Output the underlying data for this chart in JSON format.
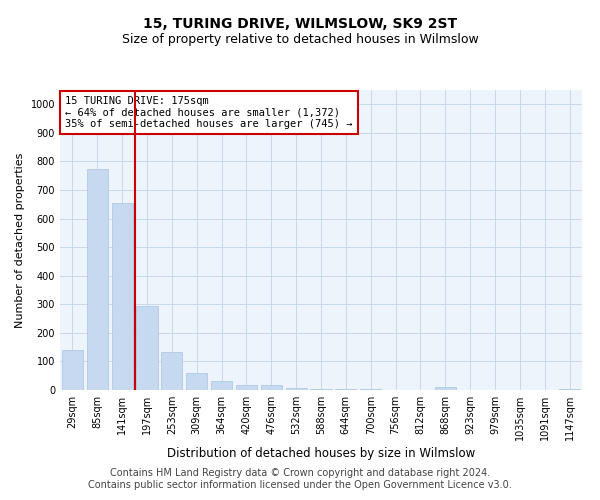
{
  "title": "15, TURING DRIVE, WILMSLOW, SK9 2ST",
  "subtitle": "Size of property relative to detached houses in Wilmslow",
  "xlabel": "Distribution of detached houses by size in Wilmslow",
  "ylabel": "Number of detached properties",
  "categories": [
    "29sqm",
    "85sqm",
    "141sqm",
    "197sqm",
    "253sqm",
    "309sqm",
    "364sqm",
    "420sqm",
    "476sqm",
    "532sqm",
    "588sqm",
    "644sqm",
    "700sqm",
    "756sqm",
    "812sqm",
    "868sqm",
    "923sqm",
    "979sqm",
    "1035sqm",
    "1091sqm",
    "1147sqm"
  ],
  "values": [
    140,
    775,
    655,
    295,
    133,
    58,
    30,
    17,
    17,
    8,
    2,
    5,
    2,
    0,
    0,
    10,
    0,
    0,
    0,
    0,
    2
  ],
  "bar_color": "#c6d9f0",
  "bar_edge_color": "#a8c4e0",
  "vline_x_index": 2.5,
  "vline_color": "#cc0000",
  "annotation_text": "15 TURING DRIVE: 175sqm\n← 64% of detached houses are smaller (1,372)\n35% of semi-detached houses are larger (745) →",
  "annotation_box_color": "white",
  "annotation_box_edge_color": "#cc0000",
  "ylim": [
    0,
    1050
  ],
  "yticks": [
    0,
    100,
    200,
    300,
    400,
    500,
    600,
    700,
    800,
    900,
    1000
  ],
  "grid_color": "#c8d8ea",
  "bg_color": "#eef4fb",
  "footer_line1": "Contains HM Land Registry data © Crown copyright and database right 2024.",
  "footer_line2": "Contains public sector information licensed under the Open Government Licence v3.0.",
  "title_fontsize": 10,
  "subtitle_fontsize": 9,
  "annotation_fontsize": 7.5,
  "ylabel_fontsize": 8,
  "xlabel_fontsize": 8.5,
  "tick_fontsize": 7,
  "footer_fontsize": 7
}
